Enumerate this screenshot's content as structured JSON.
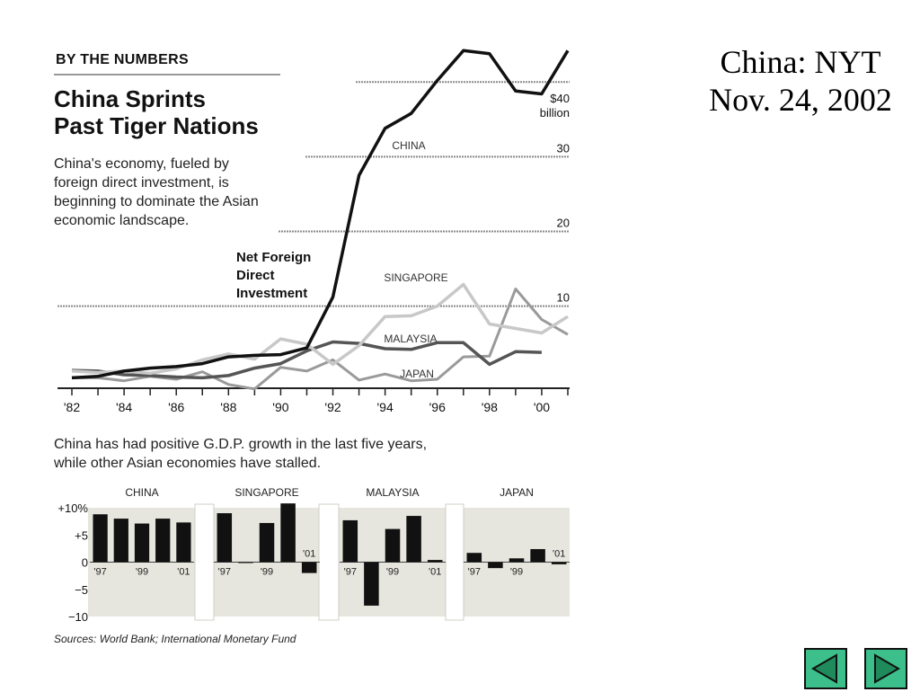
{
  "slide": {
    "title_line1": "China: NYT",
    "title_line2": "Nov. 24, 2002"
  },
  "graphic": {
    "kicker": "BY THE NUMBERS",
    "headline_line1": "China Sprints",
    "headline_line2": "Past Tiger Nations",
    "deck": "China's economy, fueled by foreign direct investment, is beginning to dominate the Asian economic landscape.",
    "deck2": "China has had positive G.D.P. growth in the last five years, while other Asian economies have stalled.",
    "source": "Sources: World Bank; International Monetary Fund"
  },
  "chart_data": [
    {
      "type": "line",
      "annotation": [
        "Net Foreign",
        "Direct",
        "Investment"
      ],
      "x": [
        1982,
        1983,
        1984,
        1985,
        1986,
        1987,
        1988,
        1989,
        1990,
        1991,
        1992,
        1993,
        1994,
        1995,
        1996,
        1997,
        1998,
        1999,
        2000,
        2001
      ],
      "xtick_values": [
        1982,
        1984,
        1986,
        1988,
        1990,
        1992,
        1994,
        1996,
        1998,
        2000
      ],
      "xtick_labels": [
        "'82",
        "'84",
        "'86",
        "'88",
        "'90",
        "'92",
        "'94",
        "'96",
        "'98",
        "'00"
      ],
      "ylim": [
        -1,
        44
      ],
      "ytick_values": [
        40,
        30,
        20,
        10
      ],
      "ytick_labels": [
        "$40",
        "30",
        "20",
        "10"
      ],
      "yunit": "billion",
      "grid": true,
      "series": [
        {
          "name": "CHINA",
          "color": "#111111",
          "width": 3.5,
          "values": [
            0.4,
            0.6,
            1.3,
            1.7,
            1.9,
            2.3,
            3.2,
            3.4,
            3.5,
            4.4,
            11.2,
            27.5,
            33.8,
            35.8,
            40.2,
            44.2,
            43.8,
            38.8,
            38.4,
            44.2
          ]
        },
        {
          "name": "SINGAPORE",
          "color": "#c8c8c8",
          "width": 3.5,
          "values": [
            1.3,
            1.1,
            1.3,
            1.0,
            1.6,
            2.8,
            3.6,
            2.9,
            5.6,
            4.9,
            2.2,
            4.7,
            8.6,
            8.7,
            10.0,
            12.9,
            7.6,
            7.0,
            6.4,
            8.6
          ]
        },
        {
          "name": "MALAYSIA",
          "color": "#555555",
          "width": 3.5,
          "values": [
            1.4,
            1.3,
            0.8,
            0.7,
            0.5,
            0.4,
            0.7,
            1.7,
            2.3,
            4.0,
            5.2,
            5.0,
            4.3,
            4.2,
            5.1,
            5.1,
            2.2,
            3.9,
            3.8,
            null
          ]
        },
        {
          "name": "JAPAN",
          "color": "#9a9a9a",
          "width": 3,
          "values": [
            0.4,
            0.4,
            0.0,
            0.6,
            0.2,
            1.2,
            -0.5,
            -1.1,
            1.8,
            1.3,
            2.8,
            0.1,
            0.9,
            0.0,
            0.2,
            3.2,
            3.3,
            12.3,
            8.2,
            6.2
          ]
        }
      ]
    },
    {
      "type": "bar",
      "xlabel": "",
      "ylim": [
        -10,
        10
      ],
      "ytick_values": [
        10,
        5,
        0,
        -5,
        -10
      ],
      "ytick_labels": [
        "+10%",
        "+5",
        "0",
        "−5",
        "−10"
      ],
      "panels": [
        {
          "name": "CHINA",
          "categories": [
            "'97",
            "'98",
            "'99",
            "'00",
            "'01"
          ],
          "values": [
            8.8,
            8.0,
            7.1,
            8.0,
            7.3
          ],
          "year_labels": [
            "'97",
            "'99",
            "'01"
          ]
        },
        {
          "name": "SINGAPORE",
          "categories": [
            "'97",
            "'98",
            "'99",
            "'00",
            "'01"
          ],
          "values": [
            9.0,
            0.0,
            7.2,
            10.8,
            -2.0
          ],
          "year_labels": [
            "'97",
            "'99",
            "'01"
          ]
        },
        {
          "name": "MALAYSIA",
          "categories": [
            "'97",
            "'98",
            "'99",
            "'00",
            "'01"
          ],
          "values": [
            7.7,
            -8.0,
            6.1,
            8.5,
            0.4
          ],
          "year_labels": [
            "'97",
            "'99",
            "'01"
          ]
        },
        {
          "name": "JAPAN",
          "categories": [
            "'97",
            "'98",
            "'99",
            "'00",
            "'01"
          ],
          "values": [
            1.7,
            -1.1,
            0.7,
            2.4,
            -0.4
          ],
          "year_labels": [
            "'97",
            "'99",
            "'01"
          ]
        }
      ]
    }
  ],
  "nav": {
    "prev_icon": "triangle-left-icon",
    "next_icon": "triangle-right-icon",
    "accent": "#3cbf8a"
  }
}
